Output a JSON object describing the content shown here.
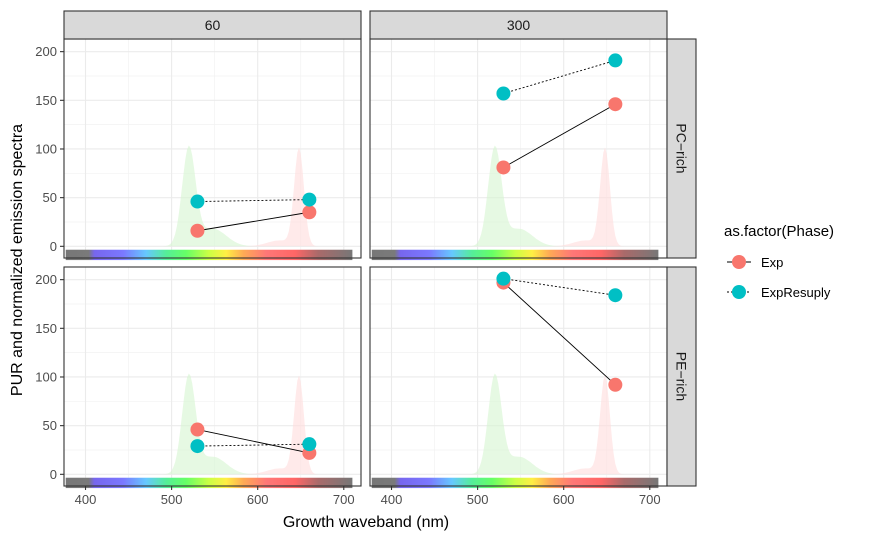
{
  "chart_data": {
    "type": "scatter",
    "xlabel": "Growth waveband (nm)",
    "ylabel": "PUR and normalized emission spectra",
    "xlim": [
      375,
      720
    ],
    "ylim": [
      -12,
      213
    ],
    "x_ticks": [
      "400",
      "500",
      "600",
      "700"
    ],
    "x_tick_values": [
      400,
      500,
      600,
      700
    ],
    "y_ticks": [
      "0",
      "50",
      "100",
      "150",
      "200"
    ],
    "y_tick_values": [
      0,
      50,
      100,
      150,
      200
    ],
    "grid": true,
    "legend": {
      "title": "as.factor(Phase)",
      "placement": "right",
      "entries": [
        "Exp",
        "ExpResuply"
      ]
    },
    "colors": {
      "Exp": "#F8766D",
      "ExpResuply": "#00BFC4",
      "panel_border": "#333333",
      "strip_fill": "#D9D9D9",
      "green_emission": "#D5F5D0",
      "red_emission": "#FFDCDC"
    },
    "col_facets": [
      "60",
      "300"
    ],
    "row_facets": [
      "PC−rich",
      "PE−rich"
    ],
    "panels": [
      {
        "col": "60",
        "row": "PC−rich",
        "series": [
          {
            "name": "Exp",
            "x": [
              530,
              660
            ],
            "y": [
              16,
              35
            ]
          },
          {
            "name": "ExpResuply",
            "x": [
              530,
              660
            ],
            "y": [
              46,
              48
            ]
          }
        ]
      },
      {
        "col": "300",
        "row": "PC−rich",
        "series": [
          {
            "name": "Exp",
            "x": [
              530,
              660
            ],
            "y": [
              81,
              146
            ]
          },
          {
            "name": "ExpResuply",
            "x": [
              530,
              660
            ],
            "y": [
              157,
              191
            ]
          }
        ]
      },
      {
        "col": "60",
        "row": "PE−rich",
        "series": [
          {
            "name": "Exp",
            "x": [
              530,
              660
            ],
            "y": [
              46,
              22
            ]
          },
          {
            "name": "ExpResuply",
            "x": [
              530,
              660
            ],
            "y": [
              29,
              31
            ]
          }
        ]
      },
      {
        "col": "300",
        "row": "PE−rich",
        "series": [
          {
            "name": "Exp",
            "x": [
              530,
              660
            ],
            "y": [
              197,
              92
            ]
          },
          {
            "name": "ExpResuply",
            "x": [
              530,
              660
            ],
            "y": [
              201,
              184
            ]
          }
        ]
      }
    ]
  }
}
